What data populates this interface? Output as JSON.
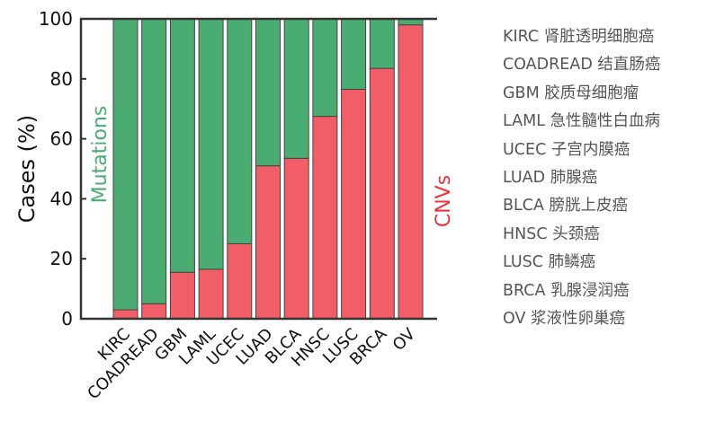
{
  "chart_data": {
    "type": "bar",
    "stacked": true,
    "categories": [
      "KIRC",
      "COADREAD",
      "GBM",
      "LAML",
      "UCEC",
      "LUAD",
      "BLCA",
      "HNSC",
      "LUSC",
      "BRCA",
      "OV"
    ],
    "series": [
      {
        "name": "CNVs",
        "color": "#f25e67",
        "values": [
          3,
          5,
          15.5,
          16.5,
          25,
          51,
          53.5,
          67.5,
          76.5,
          83.5,
          98
        ]
      },
      {
        "name": "Mutations",
        "color": "#4bac72",
        "values": [
          97,
          95,
          84.5,
          83.5,
          75,
          49,
          46.5,
          32.5,
          23.5,
          16.5,
          2
        ]
      }
    ],
    "title": "",
    "xlabel": "",
    "ylabel": "Cases (%)",
    "ylim": [
      0,
      100
    ],
    "yticks": [
      0,
      20,
      40,
      60,
      80,
      100
    ],
    "grid": false
  },
  "legend": [
    {
      "code": "KIRC",
      "name": "肾脏透明细胞癌"
    },
    {
      "code": "COADREAD",
      "name": "结直肠癌"
    },
    {
      "code": "GBM",
      "name": "胶质母细胞瘤"
    },
    {
      "code": "LAML",
      "name": "急性髓性白血病"
    },
    {
      "code": "UCEC",
      "name": "子宫内膜癌"
    },
    {
      "code": "LUAD",
      "name": "肺腺癌"
    },
    {
      "code": "BLCA",
      "name": "膀胱上皮癌"
    },
    {
      "code": "HNSC",
      "name": "头颈癌"
    },
    {
      "code": "LUSC",
      "name": "肺鳞癌"
    },
    {
      "code": "BRCA",
      "name": "乳腺浸润癌"
    },
    {
      "code": "OV",
      "name": "浆液性卵巢癌"
    }
  ]
}
